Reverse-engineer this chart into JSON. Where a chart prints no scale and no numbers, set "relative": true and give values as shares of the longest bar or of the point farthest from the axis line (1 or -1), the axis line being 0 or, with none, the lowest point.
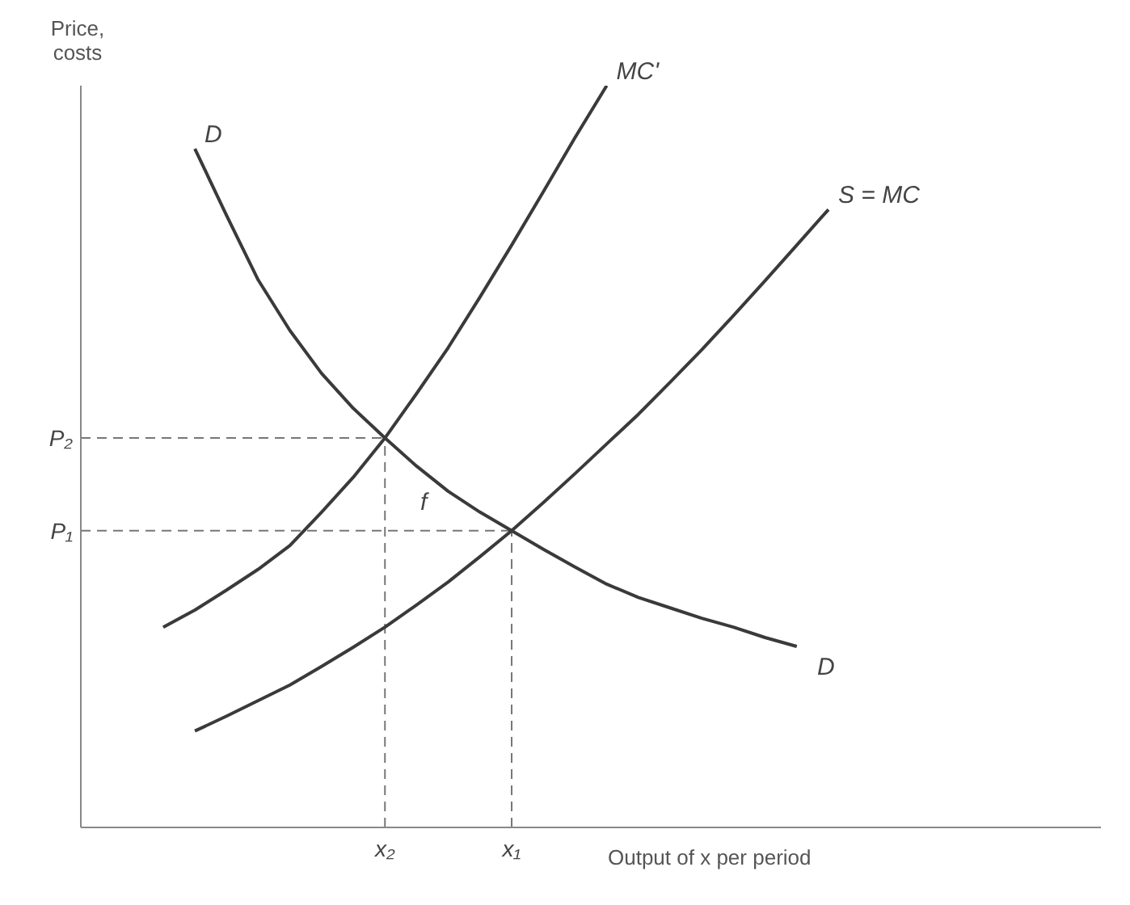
{
  "chart_data": {
    "type": "line",
    "relative": true,
    "ylabel": "Price, costs",
    "xlabel": "Output of x per period",
    "line_style": "solid",
    "marker": "none",
    "grid": false,
    "legend": false,
    "categories": [
      null,
      null,
      null,
      null,
      null,
      null,
      null,
      "x₂",
      null,
      null,
      null,
      "x₁",
      null,
      null,
      null,
      null,
      null,
      null,
      null,
      null,
      null,
      null
    ],
    "series": [
      {
        "name": "D",
        "color": "#3a3a3a",
        "values": [
          null,
          0.915,
          0.825,
          0.738,
          0.67,
          0.612,
          0.565,
          0.525,
          0.487,
          0.453,
          0.425,
          0.4,
          0.375,
          0.351,
          0.328,
          0.31,
          0.296,
          0.282,
          0.27,
          0.256,
          0.244,
          null
        ]
      },
      {
        "name": "MC'",
        "color": "#3a3a3a",
        "values": [
          0.27,
          0.293,
          0.32,
          0.348,
          0.38,
          0.425,
          0.472,
          0.525,
          0.585,
          0.647,
          0.715,
          0.785,
          0.857,
          0.93,
          1,
          null,
          null,
          null,
          null,
          null,
          null,
          null
        ]
      },
      {
        "name": "S = MC",
        "color": "#3a3a3a",
        "values": [
          null,
          0.13,
          0.15,
          0.171,
          0.192,
          0.217,
          0.243,
          0.27,
          0.3,
          0.331,
          0.365,
          0.4,
          0.438,
          0.477,
          0.517,
          0.557,
          0.6,
          0.644,
          0.69,
          0.737,
          0.785,
          0.833
        ]
      }
    ],
    "ref_lines": [
      {
        "axis": "y",
        "value": 0.525,
        "label": "P₂",
        "color": "#777777",
        "line_style": "dashed"
      },
      {
        "axis": "y",
        "value": 0.4,
        "label": "P₁",
        "color": "#777777",
        "line_style": "dashed"
      },
      {
        "axis": "x",
        "value": "x₂",
        "color": "#777777",
        "line_style": "dashed"
      },
      {
        "axis": "x",
        "value": "x₁",
        "color": "#777777",
        "line_style": "dashed"
      }
    ],
    "annotations": [
      "D",
      {
        "text": "f",
        "x": "x₂",
        "y": 0.44
      }
    ]
  }
}
